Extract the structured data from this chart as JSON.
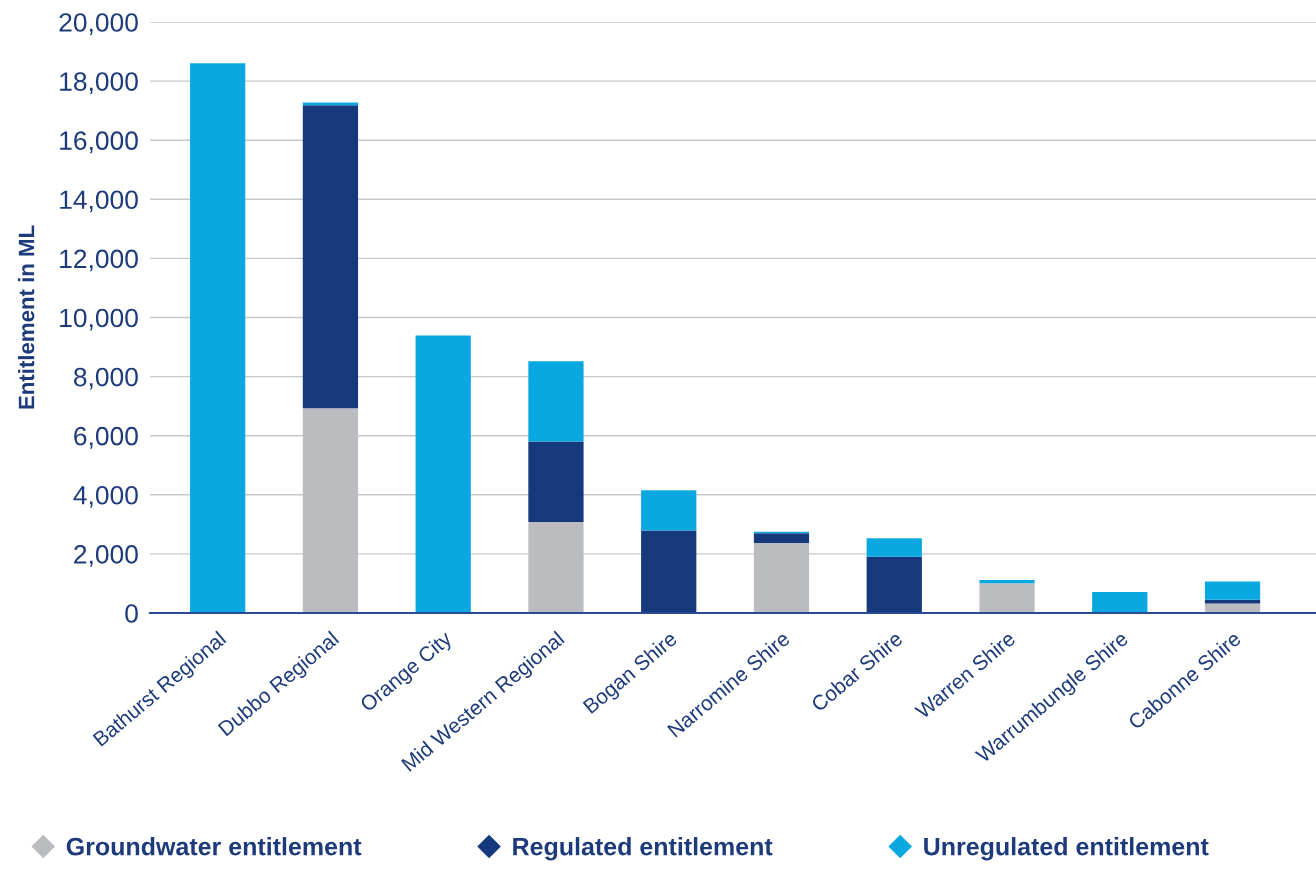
{
  "chart_data": {
    "type": "bar",
    "stacked": true,
    "categories": [
      "Bathurst Regional",
      "Dubbo Regional",
      "Orange City",
      "Mid Western Regional",
      "Bogan Shire",
      "Narromine Shire",
      "Cobar Shire",
      "Warren Shire",
      "Warrumbungle Shire",
      "Cabonne Shire"
    ],
    "series": [
      {
        "name": "Groundwater entitlement",
        "color": "#bbbcc0",
        "values": [
          0,
          6930,
          0,
          3080,
          0,
          2370,
          0,
          1010,
          0,
          320
        ]
      },
      {
        "name": "Regulated entitlement",
        "color": "#16387c",
        "values": [
          0,
          10250,
          0,
          2720,
          2790,
          330,
          1900,
          0,
          0,
          130
        ]
      },
      {
        "name": "Unregulated entitlement",
        "color": "#0aa8e0",
        "values": [
          18600,
          100,
          9390,
          2720,
          1360,
          50,
          630,
          110,
          710,
          620
        ]
      }
    ],
    "ylabel": "Entitlement in ML",
    "ylim": [
      0,
      20000
    ],
    "yticks": [
      0,
      {
        "value": 2000,
        "label": "2,000"
      },
      {
        "value": 4000,
        "label": "4,000"
      },
      {
        "value": 6000,
        "label": "6,000"
      },
      {
        "value": 8000,
        "label": "8,000"
      },
      {
        "value": 10000,
        "label": "10,000"
      },
      {
        "value": 12000,
        "label": "12,000"
      },
      {
        "value": 14000,
        "label": "14,000"
      },
      {
        "value": 16000,
        "label": "16,000"
      },
      {
        "value": 18000,
        "label": "18,000"
      },
      {
        "value": 20000,
        "label": "20,000"
      }
    ],
    "grid": "y",
    "legend": "bottom"
  }
}
